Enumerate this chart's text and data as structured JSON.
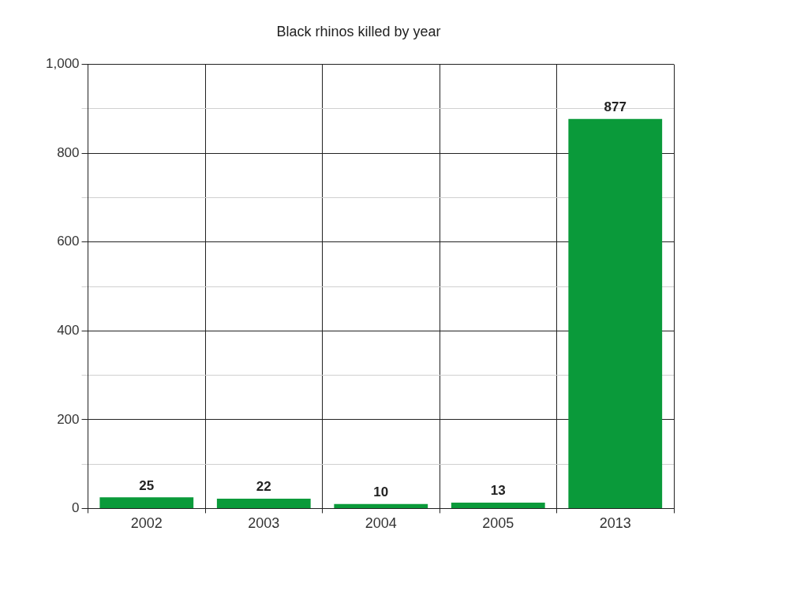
{
  "chart_data": {
    "type": "bar",
    "title": "Black rhinos killed by year",
    "categories": [
      "2002",
      "2003",
      "2004",
      "2005",
      "2013"
    ],
    "series": [
      {
        "color": "#0a9a3a",
        "values": [
          25,
          22,
          10,
          13,
          877
        ]
      }
    ],
    "ylim": [
      0,
      1000
    ],
    "yticks": [
      0,
      {
        "value": 100,
        "label": null
      },
      200,
      {
        "value": 300,
        "label": null
      },
      400,
      {
        "value": 500,
        "label": null
      },
      600,
      {
        "value": 700,
        "label": null
      },
      800,
      {
        "value": 900,
        "label": null
      },
      {
        "value": 1000,
        "label": "1,000"
      }
    ],
    "grid": true,
    "data_labels": true
  }
}
